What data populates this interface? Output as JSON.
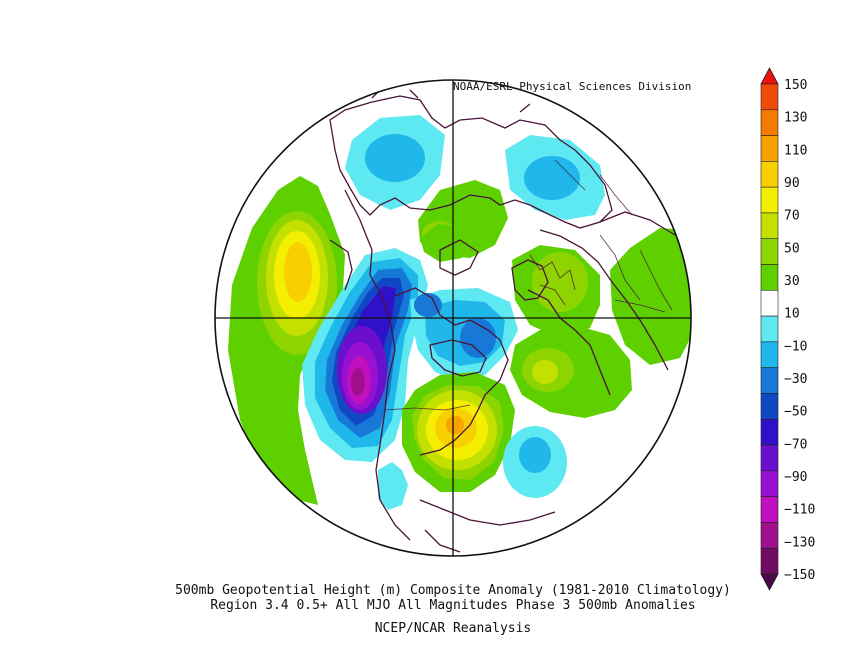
{
  "credit": "NOAA/ESRL Physical Sciences Division",
  "captions": {
    "line1": "500mb Geopotential Height (m) Composite Anomaly (1981-2010 Climatology)",
    "line2": "Region 3.4 0.5+ All MJO All Magnitudes Phase 3 500mb Anomalies",
    "line3": "NCEP/NCAR Reanalysis"
  },
  "colorbar": {
    "levels": [
      "150",
      "130",
      "110",
      "90",
      "70",
      "50",
      "30",
      "10",
      "-10",
      "-30",
      "-50",
      "-70",
      "-90",
      "-110",
      "-130",
      "-150"
    ],
    "colors": [
      "#ee1111",
      "#f04a0a",
      "#f47a00",
      "#f6a300",
      "#f8cf00",
      "#f4ef00",
      "#c4e000",
      "#8ed400",
      "#5ed000",
      "#ffffff",
      "#5ee8f2",
      "#20b8ea",
      "#1878d8",
      "#1048c4",
      "#3010c8",
      "#6a10cc",
      "#9a10d0",
      "#c010c0",
      "#a0108c",
      "#700a64",
      "#4a0846"
    ]
  },
  "map": {
    "projection": "North polar stereographic",
    "anomaly_centers": [
      {
        "region": "North Pacific",
        "sign": "positive",
        "peak": 70
      },
      {
        "region": "Western North America",
        "sign": "negative",
        "peak": -120
      },
      {
        "region": "Central/Eastern United States",
        "sign": "positive",
        "peak": 70
      },
      {
        "region": "Hudson Bay / Canadian Arctic",
        "sign": "negative",
        "peak": -50
      },
      {
        "region": "Europe",
        "sign": "positive",
        "peak": 30
      },
      {
        "region": "North Atlantic",
        "sign": "positive",
        "peak": 40
      },
      {
        "region": "Siberia",
        "sign": "negative",
        "peak": -30
      },
      {
        "region": "Western Atlantic",
        "sign": "negative",
        "peak": -30
      }
    ]
  }
}
